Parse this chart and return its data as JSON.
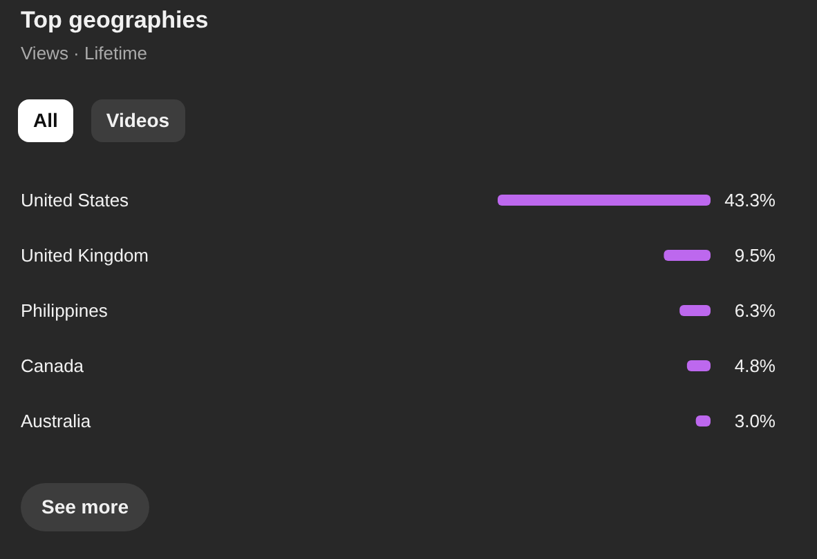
{
  "chart_data": {
    "type": "bar",
    "orientation": "horizontal",
    "title": "Top geographies",
    "subtitle": "Views · Lifetime",
    "categories": [
      "United States",
      "United Kingdom",
      "Philippines",
      "Canada",
      "Australia"
    ],
    "values": [
      43.3,
      9.5,
      6.3,
      4.8,
      3.0
    ],
    "value_labels": [
      "43.3%",
      "9.5%",
      "6.3%",
      "4.8%",
      "3.0%"
    ],
    "color": "#bd68ee",
    "annotations": [
      "All",
      "Videos",
      "See more"
    ]
  }
}
